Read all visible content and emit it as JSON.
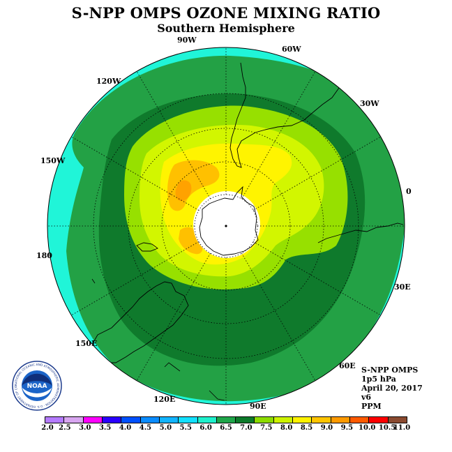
{
  "header": {
    "title": "S-NPP OMPS OZONE MIXING RATIO",
    "subtitle": "Southern Hemisphere"
  },
  "longitude_labels": [
    {
      "id": "lon-90w",
      "text": "90W"
    },
    {
      "id": "lon-60w",
      "text": "60W"
    },
    {
      "id": "lon-30w",
      "text": "30W"
    },
    {
      "id": "lon-0",
      "text": "0"
    },
    {
      "id": "lon-30e",
      "text": "30E"
    },
    {
      "id": "lon-60e",
      "text": "60E"
    },
    {
      "id": "lon-90e",
      "text": "90E"
    },
    {
      "id": "lon-120e",
      "text": "120E"
    },
    {
      "id": "lon-150e",
      "text": "150E"
    },
    {
      "id": "lon-180",
      "text": "180"
    },
    {
      "id": "lon-150w",
      "text": "150W"
    },
    {
      "id": "lon-120w",
      "text": "120W"
    }
  ],
  "info": {
    "instrument": "S-NPP OMPS",
    "level": "1p5 hPa",
    "date": "April 20, 2017",
    "version": "v6",
    "units": "PPM"
  },
  "logo": {
    "text": "NOAA",
    "ring_text": "NATIONAL OCEANIC AND ATMOSPHERIC ADMINISTRATION · U.S. DEPARTMENT OF COMMERCE"
  },
  "colorbar": {
    "ticks": [
      "2.0",
      "2.5",
      "3.0",
      "3.5",
      "4.0",
      "4.5",
      "5.0",
      "5.5",
      "6.0",
      "6.5",
      "7.0",
      "7.5",
      "8.0",
      "8.5",
      "9.0",
      "9.5",
      "10.0",
      "10.5",
      "11.0"
    ],
    "colors": [
      "#b57bff",
      "#d8a6f0",
      "#ff00ff",
      "#2a00ff",
      "#0050ff",
      "#0a8cff",
      "#12b4ff",
      "#13e0ff",
      "#1ef0cc",
      "#1fa64a",
      "#0c7a2a",
      "#8ddc00",
      "#cdf200",
      "#fff200",
      "#ffc400",
      "#ff9a00",
      "#ff5a00",
      "#ff0000",
      "#8a4a30"
    ]
  },
  "map_style": {
    "ocean_cyan": "#20f5d8",
    "ring_green_light": "#23a145",
    "ring_green_dark": "#0f7a2c",
    "lime": "#97e000",
    "yellow_green": "#d2f600",
    "yellow": "#fff400",
    "gold": "#ffc000",
    "orange": "#ffa200",
    "pole_void": "#ffffff"
  }
}
